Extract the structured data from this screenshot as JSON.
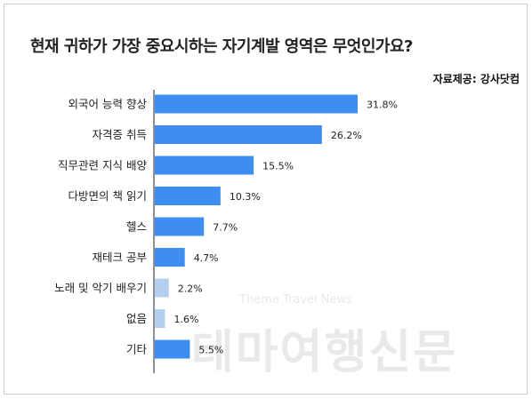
{
  "title": "현재 귀하가 가장 중요시하는 자기계발 영역은 무엇인가요?",
  "source": "자료제공: 강사닷컴",
  "watermark": {
    "english": "Theme Travel News",
    "korean": "테마여행신문"
  },
  "chart_data": {
    "type": "bar",
    "orientation": "horizontal",
    "categories": [
      "외국어 능력 향상",
      "자격증 취득",
      "직무관련 지식 배양",
      "다방면의 책 읽기",
      "헬스",
      "재테크 공부",
      "노래 및 악기 배우기",
      "없음",
      "기타"
    ],
    "values": [
      31.8,
      26.2,
      15.5,
      10.3,
      7.7,
      4.7,
      2.2,
      1.6,
      5.5
    ],
    "value_labels": [
      "31.8%",
      "26.2%",
      "15.5%",
      "10.3%",
      "7.7%",
      "4.7%",
      "2.2%",
      "1.6%",
      "5.5%"
    ],
    "bar_colors": [
      "#3d8ef0",
      "#3d8ef0",
      "#3d8ef0",
      "#3d8ef0",
      "#3d8ef0",
      "#3d8ef0",
      "#b5cff0",
      "#b5cff0",
      "#3d8ef0"
    ],
    "xlim": [
      0,
      35
    ],
    "grid": false,
    "legend": "none"
  }
}
